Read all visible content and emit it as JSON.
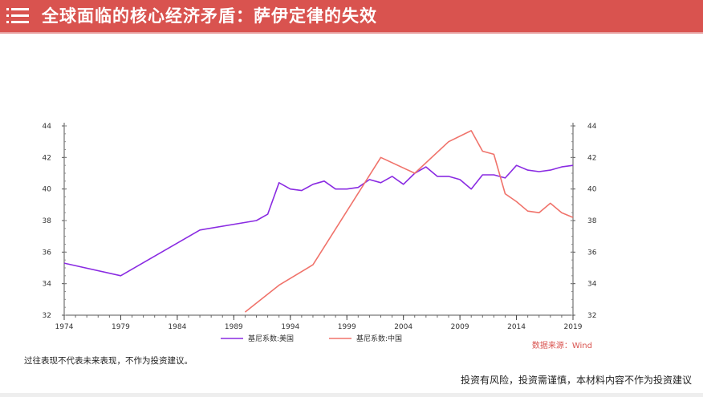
{
  "header": {
    "title": "全球面临的核心经济矛盾：萨伊定律的失效",
    "icon": "list-icon",
    "bg_color": "#d9534f"
  },
  "chart_data": {
    "type": "line",
    "xlabel": "",
    "ylabel": "",
    "xlim": [
      1974,
      2019
    ],
    "ylim": [
      32,
      44
    ],
    "x_ticks": [
      "1974",
      "1979",
      "1984",
      "1989",
      "1994",
      "1999",
      "2004",
      "2009",
      "2014",
      "2019"
    ],
    "y_ticks": [
      "32",
      "34",
      "36",
      "38",
      "40",
      "42",
      "44"
    ],
    "grid": false,
    "legend_position": "bottom",
    "series": [
      {
        "name": "基尼系数:美国",
        "color": "#8a2be2",
        "points": [
          [
            1974,
            35.3
          ],
          [
            1979,
            34.5
          ],
          [
            1986,
            37.4
          ],
          [
            1991,
            38.0
          ],
          [
            1992,
            38.4
          ],
          [
            1993,
            40.4
          ],
          [
            1994,
            40.0
          ],
          [
            1995,
            39.9
          ],
          [
            1996,
            40.3
          ],
          [
            1997,
            40.5
          ],
          [
            1998,
            40.0
          ],
          [
            1999,
            40.0
          ],
          [
            2000,
            40.1
          ],
          [
            2001,
            40.6
          ],
          [
            2002,
            40.4
          ],
          [
            2003,
            40.8
          ],
          [
            2004,
            40.3
          ],
          [
            2005,
            41.0
          ],
          [
            2006,
            41.4
          ],
          [
            2007,
            40.8
          ],
          [
            2008,
            40.8
          ],
          [
            2009,
            40.6
          ],
          [
            2010,
            40.0
          ],
          [
            2011,
            40.9
          ],
          [
            2012,
            40.9
          ],
          [
            2013,
            40.7
          ],
          [
            2014,
            41.5
          ],
          [
            2015,
            41.2
          ],
          [
            2016,
            41.1
          ],
          [
            2017,
            41.2
          ],
          [
            2018,
            41.4
          ],
          [
            2019,
            41.5
          ]
        ]
      },
      {
        "name": "基尼系数:中国",
        "color": "#f0736b",
        "points": [
          [
            1990,
            32.2
          ],
          [
            1993,
            33.9
          ],
          [
            1996,
            35.2
          ],
          [
            2002,
            42.0
          ],
          [
            2005,
            41.0
          ],
          [
            2008,
            43.0
          ],
          [
            2010,
            43.7
          ],
          [
            2011,
            42.4
          ],
          [
            2012,
            42.2
          ],
          [
            2013,
            39.7
          ],
          [
            2014,
            39.2
          ],
          [
            2015,
            38.6
          ],
          [
            2016,
            38.5
          ],
          [
            2017,
            39.1
          ],
          [
            2018,
            38.5
          ],
          [
            2019,
            38.2
          ]
        ]
      }
    ],
    "source_note": "数据来源：Wind"
  },
  "footer": {
    "left_note": "过往表现不代表未来表现，不作为投资建议。",
    "right_note": "投资有风险，投资需谨慎，本材料内容不作为投资建议"
  }
}
